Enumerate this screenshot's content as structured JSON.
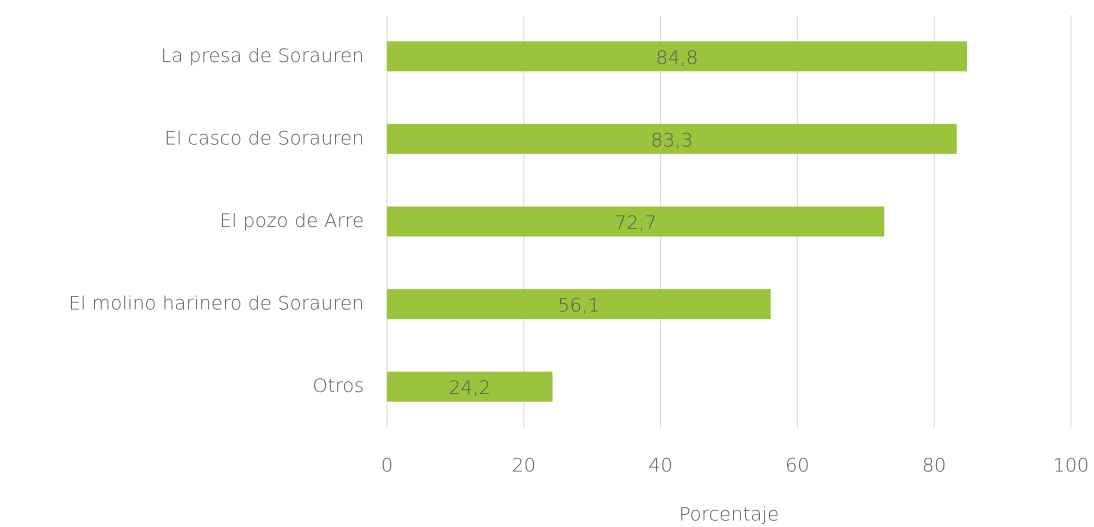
{
  "chart_data": {
    "type": "bar",
    "orientation": "horizontal",
    "categories": [
      "La presa de Sorauren",
      "El casco de Sorauren",
      "El pozo de Arre",
      "El molino harinero de Sorauren",
      "Otros"
    ],
    "values": [
      84.8,
      83.3,
      72.7,
      56.1,
      24.2
    ],
    "value_labels": [
      "84,8",
      "83,3",
      "72,7",
      "56,1",
      "24,2"
    ],
    "color": "#9ac43c",
    "xlabel": "Porcentaje",
    "xlim": [
      0,
      100
    ],
    "xticks": [
      0,
      20,
      40,
      60,
      80,
      100
    ],
    "grid": true
  }
}
